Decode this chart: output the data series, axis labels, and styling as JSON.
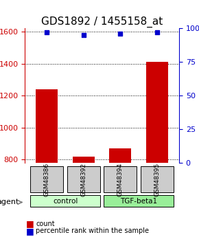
{
  "title": "GDS1892 / 1455158_at",
  "samples": [
    "GSM48386",
    "GSM48392",
    "GSM48394",
    "GSM48395"
  ],
  "counts": [
    1240,
    820,
    870,
    1410
  ],
  "percentiles": [
    97,
    95,
    96,
    97
  ],
  "ylim_left": [
    780,
    1620
  ],
  "ylim_right": [
    0,
    100
  ],
  "yticks_left": [
    800,
    1000,
    1200,
    1400,
    1600
  ],
  "yticks_right": [
    0,
    25,
    50,
    75,
    100
  ],
  "bar_color": "#cc0000",
  "dot_color": "#0000cc",
  "bar_width": 0.6,
  "groups": [
    {
      "label": "control",
      "samples": [
        "GSM48386",
        "GSM48392"
      ],
      "color": "#ccffcc"
    },
    {
      "label": "TGF-beta1",
      "samples": [
        "GSM48394",
        "GSM48395"
      ],
      "color": "#99ee99"
    }
  ],
  "agent_label": "agent",
  "legend_count_label": "count",
  "legend_pct_label": "percentile rank within the sample",
  "background_color": "#ffffff",
  "plot_bg_color": "#ffffff",
  "grid_color": "#000000",
  "sample_box_color": "#cccccc",
  "title_fontsize": 11,
  "axis_fontsize": 9,
  "tick_fontsize": 8
}
